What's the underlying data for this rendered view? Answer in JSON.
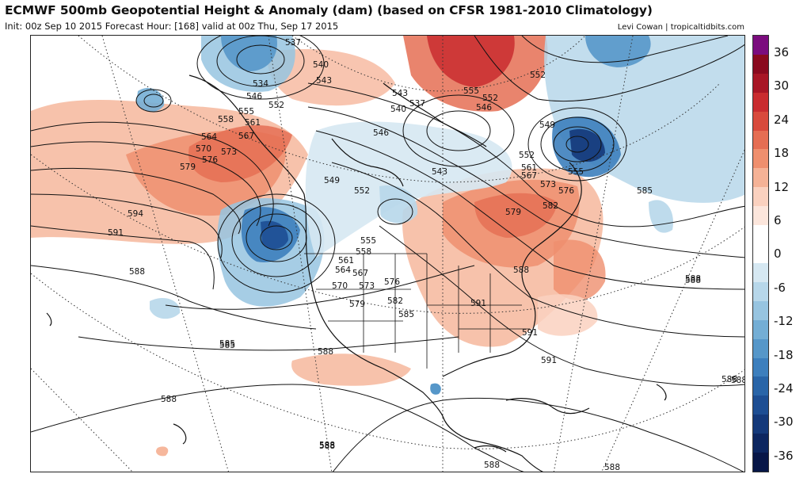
{
  "header": {
    "title": "ECMWF 500mb Geopotential Height & Anomaly (dam) (based on CFSR 1981-2010 Climatology)",
    "subtitle": "Init: 00z Sep 10 2015   Forecast Hour: [168]   valid at 00z Thu, Sep 17 2015",
    "credit": "Levi Cowan | tropicaltidbits.com"
  },
  "colorbar": {
    "labels": [
      "36",
      "30",
      "24",
      "18",
      "12",
      "6",
      "0",
      "-6",
      "-12",
      "-18",
      "-24",
      "-30",
      "-36"
    ],
    "colors": [
      "#7b0c7e",
      "#8a0a1e",
      "#a81625",
      "#c92c2f",
      "#d84a3c",
      "#e56e53",
      "#ef8f6e",
      "#f5b296",
      "#fad1bf",
      "#fce6dc",
      "#ffffff",
      "#ffffff",
      "#d6e8f2",
      "#b7d7ea",
      "#97c4e0",
      "#74aed5",
      "#5697c9",
      "#3d7fbd",
      "#2965a8",
      "#1d4e93",
      "#14397a",
      "#0c2660",
      "#071647"
    ]
  },
  "map": {
    "contour_labels": [
      {
        "id": "c1",
        "text": "537"
      },
      {
        "id": "c2",
        "text": "534"
      },
      {
        "id": "c3",
        "text": "540"
      },
      {
        "id": "c4",
        "text": "543"
      },
      {
        "id": "c5",
        "text": "546"
      },
      {
        "id": "c6",
        "text": "552"
      },
      {
        "id": "c7",
        "text": "555"
      },
      {
        "id": "c8",
        "text": "558"
      },
      {
        "id": "c9",
        "text": "561"
      },
      {
        "id": "c10",
        "text": "564"
      },
      {
        "id": "c11",
        "text": "567"
      },
      {
        "id": "c12",
        "text": "570"
      },
      {
        "id": "c13",
        "text": "573"
      },
      {
        "id": "c14",
        "text": "576"
      },
      {
        "id": "c15",
        "text": "579"
      },
      {
        "id": "c16",
        "text": "594"
      },
      {
        "id": "c17",
        "text": "591"
      },
      {
        "id": "c18",
        "text": "588"
      },
      {
        "id": "c19",
        "text": "585"
      },
      {
        "id": "c20",
        "text": "588"
      },
      {
        "id": "c21",
        "text": "549"
      },
      {
        "id": "c22",
        "text": "552"
      },
      {
        "id": "c23",
        "text": "546"
      },
      {
        "id": "c24",
        "text": "543"
      },
      {
        "id": "c25",
        "text": "540"
      },
      {
        "id": "c26",
        "text": "537"
      },
      {
        "id": "c27",
        "text": "543"
      },
      {
        "id": "c28",
        "text": "555"
      },
      {
        "id": "c29",
        "text": "552"
      },
      {
        "id": "c30",
        "text": "546"
      },
      {
        "id": "c31",
        "text": "552"
      },
      {
        "id": "c32",
        "text": "549"
      },
      {
        "id": "c33",
        "text": "552"
      },
      {
        "id": "c34",
        "text": "555"
      },
      {
        "id": "c35",
        "text": "561"
      },
      {
        "id": "c36",
        "text": "567"
      },
      {
        "id": "c37",
        "text": "573"
      },
      {
        "id": "c38",
        "text": "576"
      },
      {
        "id": "c39",
        "text": "579"
      },
      {
        "id": "c40",
        "text": "582"
      },
      {
        "id": "c41",
        "text": "585"
      },
      {
        "id": "c42",
        "text": "588"
      },
      {
        "id": "c43",
        "text": "555"
      },
      {
        "id": "c44",
        "text": "558"
      },
      {
        "id": "c45",
        "text": "561"
      },
      {
        "id": "c46",
        "text": "564"
      },
      {
        "id": "c47",
        "text": "567"
      },
      {
        "id": "c48",
        "text": "570"
      },
      {
        "id": "c49",
        "text": "573"
      },
      {
        "id": "c50",
        "text": "576"
      },
      {
        "id": "c51",
        "text": "579"
      },
      {
        "id": "c52",
        "text": "582"
      },
      {
        "id": "c53",
        "text": "585"
      },
      {
        "id": "c54",
        "text": "588"
      },
      {
        "id": "c55",
        "text": "591"
      },
      {
        "id": "c56",
        "text": "588"
      },
      {
        "id": "c57",
        "text": "591"
      },
      {
        "id": "c58",
        "text": "591"
      },
      {
        "id": "c59",
        "text": "588"
      },
      {
        "id": "c60",
        "text": "588"
      },
      {
        "id": "c61",
        "text": "588"
      },
      {
        "id": "c62",
        "text": "588"
      },
      {
        "id": "c63",
        "text": "588"
      },
      {
        "id": "c64",
        "text": "588"
      },
      {
        "id": "c65",
        "text": "588"
      },
      {
        "id": "c66",
        "text": "585"
      }
    ]
  }
}
